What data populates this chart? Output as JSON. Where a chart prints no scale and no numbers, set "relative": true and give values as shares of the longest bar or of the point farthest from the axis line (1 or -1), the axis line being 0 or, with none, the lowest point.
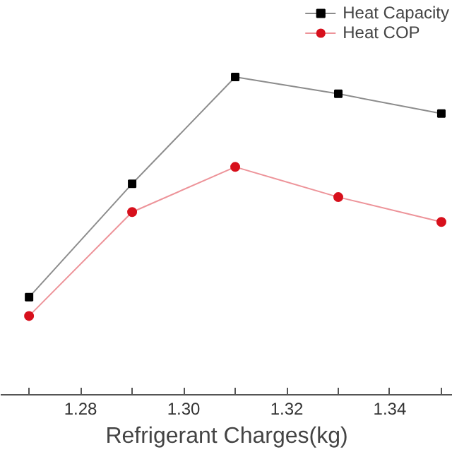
{
  "chart_data": {
    "type": "line",
    "xlabel": "Refrigerant Charges(kg)",
    "relative": true,
    "x": [
      1.27,
      1.29,
      1.31,
      1.33,
      1.35
    ],
    "xlim": [
      1.2645,
      1.3522
    ],
    "xticks": [
      {
        "value": 1.27,
        "label": null
      },
      {
        "value": 1.28,
        "label": "1.28"
      },
      {
        "value": 1.29,
        "label": null
      },
      {
        "value": 1.3,
        "label": "1.30"
      },
      {
        "value": 1.31,
        "label": null
      },
      {
        "value": 1.32,
        "label": "1.32"
      },
      {
        "value": 1.33,
        "label": null
      },
      {
        "value": 1.34,
        "label": "1.34"
      },
      {
        "value": 1.35,
        "label": null
      }
    ],
    "series": [
      {
        "name": "Heat Capacity",
        "color": "#000000",
        "marker": "square",
        "values": [
          0.307,
          0.664,
          1.0,
          0.947,
          0.885
        ]
      },
      {
        "name": "Heat COP",
        "color": "#d7101c",
        "marker": "circle",
        "values": [
          0.248,
          0.575,
          0.717,
          0.622,
          0.544
        ]
      }
    ],
    "legend": "top right",
    "grid": false,
    "tick_labels": "x"
  }
}
